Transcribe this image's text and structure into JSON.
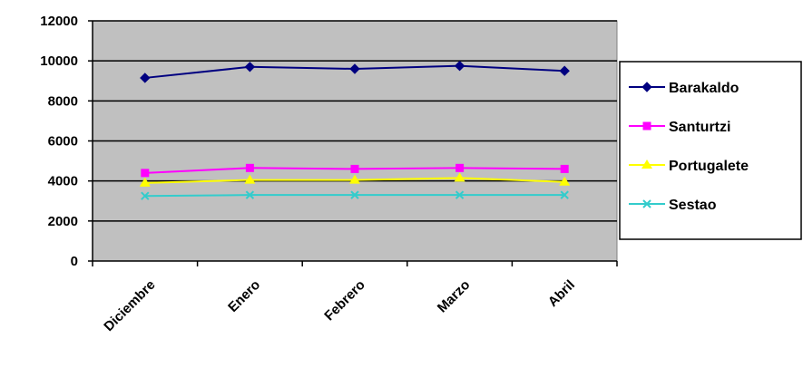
{
  "chart_data": {
    "type": "line",
    "title": "",
    "xlabel": "",
    "ylabel": "",
    "categories": [
      "Diciembre",
      "Enero",
      "Febrero",
      "Marzo",
      "Abril"
    ],
    "ylim": [
      0,
      12000
    ],
    "yticks": [
      0,
      2000,
      4000,
      6000,
      8000,
      10000,
      12000
    ],
    "grid": true,
    "legend_position": "right",
    "plot_background": "#c0c0c0",
    "series": [
      {
        "name": "Barakaldo",
        "values": [
          9150,
          9700,
          9600,
          9750,
          9500
        ],
        "color": "#000080",
        "marker": "diamond"
      },
      {
        "name": "Santurtzi",
        "values": [
          4400,
          4650,
          4600,
          4650,
          4600
        ],
        "color": "#ff00ff",
        "marker": "square"
      },
      {
        "name": "Portugalete",
        "values": [
          3900,
          4050,
          4050,
          4150,
          3950
        ],
        "color": "#ffff00",
        "marker": "triangle"
      },
      {
        "name": "Sestao",
        "values": [
          3250,
          3300,
          3300,
          3300,
          3300
        ],
        "color": "#33cccc",
        "marker": "x"
      }
    ]
  }
}
